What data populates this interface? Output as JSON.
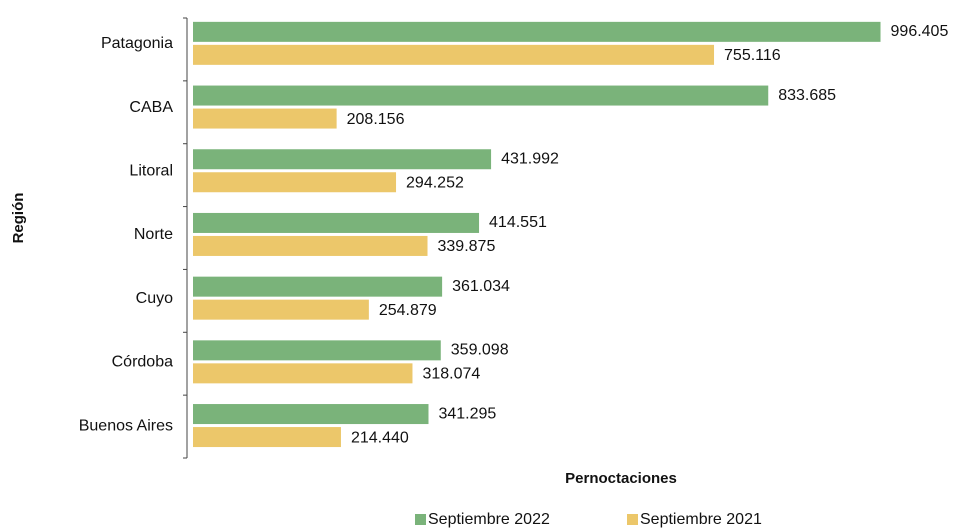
{
  "chart_data": {
    "type": "bar",
    "orientation": "horizontal",
    "ylabel": "Región",
    "xlabel": "Pernoctaciones",
    "categories": [
      "Patagonia",
      "CABA",
      "Litoral",
      "Norte",
      "Cuyo",
      "Córdoba",
      "Buenos Aires"
    ],
    "xlim": [
      0,
      1000000
    ],
    "series": [
      {
        "name": "Septiembre 2022",
        "color": "#7ab37a",
        "values": [
          996405,
          833685,
          431992,
          414551,
          361034,
          359098,
          341295
        ],
        "value_labels": [
          "996.405",
          "833.685",
          "431.992",
          "414.551",
          "361.034",
          "359.098",
          "341.295"
        ]
      },
      {
        "name": "Septiembre 2021",
        "color": "#ecc76a",
        "values": [
          755116,
          208156,
          294252,
          339875,
          254879,
          318074,
          214440
        ],
        "value_labels": [
          "755.116",
          "208.156",
          "294.252",
          "339.875",
          "254.879",
          "318.074",
          "214.440"
        ]
      }
    ],
    "legend": "bottom"
  }
}
